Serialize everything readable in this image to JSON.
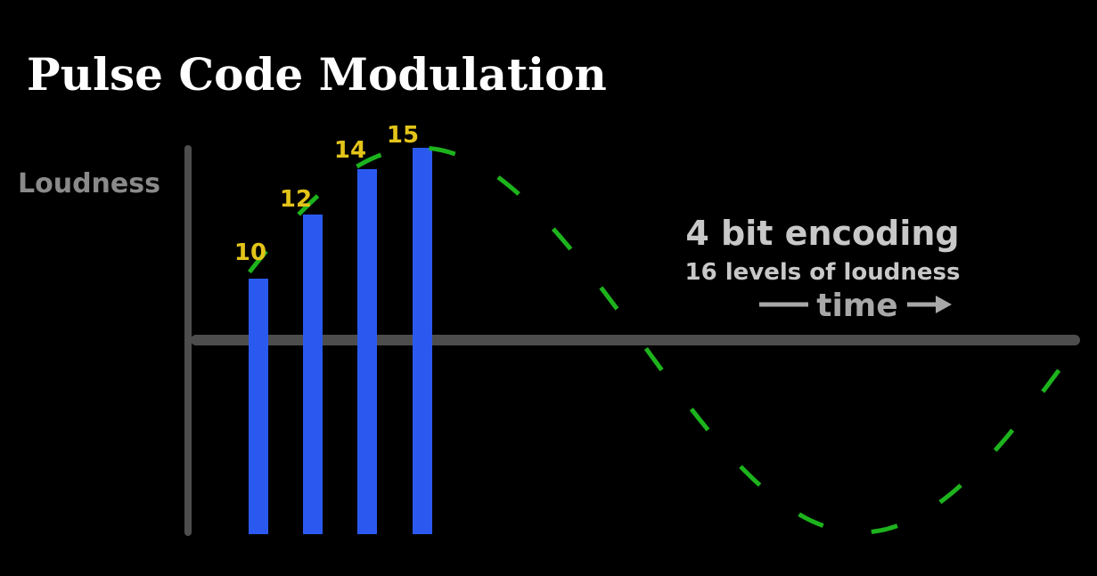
{
  "title": "Pulse Code Modulation",
  "axis_label": "Loudness",
  "bar_labels": [
    "10",
    "12",
    "14",
    "15"
  ],
  "annotations": {
    "encoding": "4 bit encoding",
    "levels": "16 levels of loudness",
    "time": "time"
  }
}
